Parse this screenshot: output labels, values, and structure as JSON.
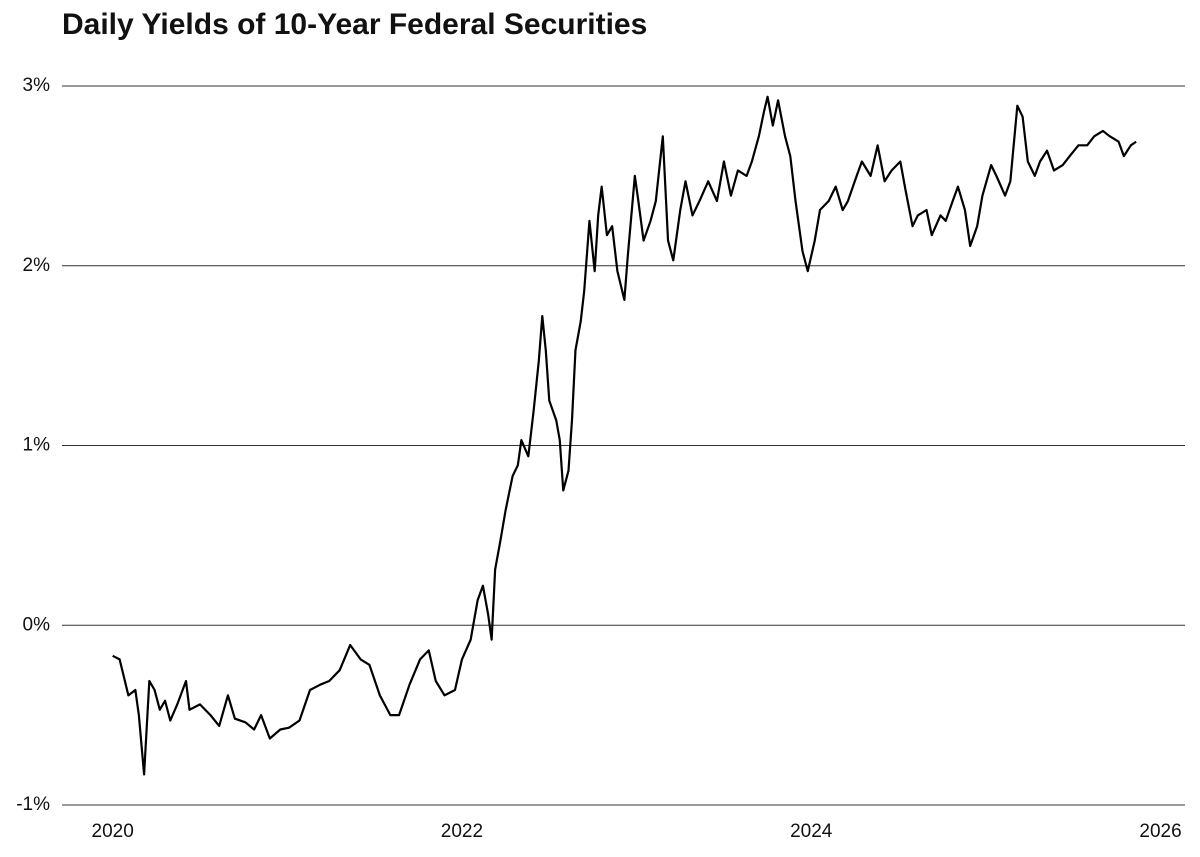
{
  "chart_data": {
    "type": "line",
    "title": "Daily Yields of 10-Year Federal Securities",
    "color": "#000000",
    "grid": true,
    "xlim": [
      2019.71,
      2026.14
    ],
    "xticks": [
      2020,
      2022,
      2024,
      2026
    ],
    "ylim": [
      -1,
      3
    ],
    "yticks": [
      {
        "value": -1,
        "label": "-1%"
      },
      {
        "value": 0,
        "label": "0%"
      },
      {
        "value": 1,
        "label": "1%"
      },
      {
        "value": 2,
        "label": "2%"
      },
      {
        "value": 3,
        "label": "3%"
      }
    ],
    "x": [
      2020.0,
      2020.04,
      2020.09,
      2020.13,
      2020.15,
      2020.18,
      2020.21,
      2020.24,
      2020.27,
      2020.3,
      2020.33,
      2020.37,
      2020.42,
      2020.44,
      2020.5,
      2020.56,
      2020.61,
      2020.66,
      2020.7,
      2020.76,
      2020.81,
      2020.85,
      2020.9,
      2020.96,
      2021.01,
      2021.07,
      2021.13,
      2021.19,
      2021.24,
      2021.3,
      2021.36,
      2021.42,
      2021.47,
      2021.53,
      2021.59,
      2021.64,
      2021.7,
      2021.76,
      2021.81,
      2021.85,
      2021.9,
      2021.96,
      2022.0,
      2022.05,
      2022.09,
      2022.12,
      2022.15,
      2022.17,
      2022.19,
      2022.22,
      2022.25,
      2022.29,
      2022.32,
      2022.34,
      2022.38,
      2022.41,
      2022.44,
      2022.46,
      2022.48,
      2022.5,
      2022.54,
      2022.56,
      2022.58,
      2022.61,
      2022.63,
      2022.65,
      2022.68,
      2022.7,
      2022.73,
      2022.76,
      2022.78,
      2022.8,
      2022.83,
      2022.86,
      2022.89,
      2022.93,
      2022.95,
      2022.99,
      2023.01,
      2023.04,
      2023.08,
      2023.11,
      2023.15,
      2023.18,
      2023.21,
      2023.25,
      2023.28,
      2023.32,
      2023.36,
      2023.41,
      2023.46,
      2023.5,
      2023.54,
      2023.58,
      2023.63,
      2023.66,
      2023.7,
      2023.73,
      2023.75,
      2023.78,
      2023.81,
      2023.85,
      2023.88,
      2023.91,
      2023.95,
      2023.98,
      2024.02,
      2024.05,
      2024.1,
      2024.14,
      2024.18,
      2024.21,
      2024.26,
      2024.29,
      2024.34,
      2024.38,
      2024.42,
      2024.46,
      2024.51,
      2024.54,
      2024.58,
      2024.61,
      2024.66,
      2024.69,
      2024.74,
      2024.77,
      2024.81,
      2024.84,
      2024.88,
      2024.91,
      2024.95,
      2024.98,
      2025.03,
      2025.06,
      2025.11,
      2025.14,
      2025.18,
      2025.21,
      2025.24,
      2025.28,
      2025.31,
      2025.35,
      2025.39,
      2025.44,
      2025.48,
      2025.53,
      2025.58,
      2025.62,
      2025.67,
      2025.71,
      2025.76,
      2025.79,
      2025.83,
      2025.86
    ],
    "values": [
      -0.17,
      -0.19,
      -0.39,
      -0.36,
      -0.5,
      -0.83,
      -0.31,
      -0.36,
      -0.47,
      -0.42,
      -0.53,
      -0.44,
      -0.31,
      -0.47,
      -0.44,
      -0.5,
      -0.56,
      -0.39,
      -0.52,
      -0.54,
      -0.58,
      -0.5,
      -0.63,
      -0.58,
      -0.57,
      -0.53,
      -0.36,
      -0.33,
      -0.31,
      -0.25,
      -0.11,
      -0.19,
      -0.22,
      -0.39,
      -0.5,
      -0.5,
      -0.33,
      -0.19,
      -0.14,
      -0.31,
      -0.39,
      -0.36,
      -0.19,
      -0.08,
      0.14,
      0.22,
      0.06,
      -0.08,
      0.31,
      0.47,
      0.64,
      0.83,
      0.89,
      1.03,
      0.94,
      1.19,
      1.47,
      1.72,
      1.53,
      1.25,
      1.14,
      1.03,
      0.75,
      0.86,
      1.14,
      1.53,
      1.69,
      1.86,
      2.25,
      1.97,
      2.28,
      2.44,
      2.17,
      2.22,
      1.97,
      1.81,
      2.06,
      2.5,
      2.36,
      2.14,
      2.25,
      2.36,
      2.72,
      2.14,
      2.03,
      2.31,
      2.47,
      2.28,
      2.36,
      2.47,
      2.36,
      2.58,
      2.39,
      2.53,
      2.5,
      2.58,
      2.72,
      2.86,
      2.94,
      2.78,
      2.92,
      2.72,
      2.61,
      2.36,
      2.08,
      1.97,
      2.14,
      2.31,
      2.36,
      2.44,
      2.31,
      2.36,
      2.5,
      2.58,
      2.5,
      2.67,
      2.47,
      2.53,
      2.58,
      2.42,
      2.22,
      2.28,
      2.31,
      2.17,
      2.28,
      2.25,
      2.36,
      2.44,
      2.31,
      2.11,
      2.22,
      2.39,
      2.56,
      2.5,
      2.39,
      2.47,
      2.89,
      2.83,
      2.58,
      2.5,
      2.58,
      2.64,
      2.53,
      2.56,
      2.61,
      2.67,
      2.67,
      2.72,
      2.75,
      2.72,
      2.69,
      2.61,
      2.67,
      2.69
    ]
  }
}
